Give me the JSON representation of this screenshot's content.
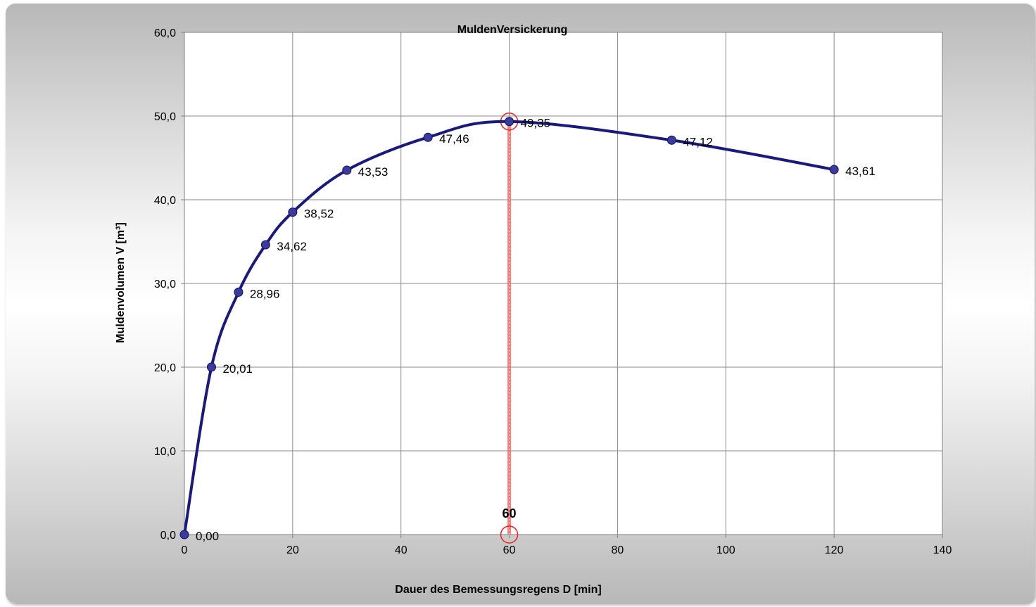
{
  "chart_data": {
    "type": "line",
    "title": "MuldenVersickerung",
    "xlabel": "Dauer des Bemessungsregens  D [min]",
    "ylabel": "Muldenvolumen V [m³]",
    "xlim": [
      0,
      140
    ],
    "ylim": [
      0,
      60
    ],
    "x_ticks": [
      "0",
      "20",
      "40",
      "60",
      "80",
      "100",
      "120",
      "140"
    ],
    "y_ticks": [
      "0,0",
      "10,0",
      "20,0",
      "30,0",
      "40,0",
      "50,0",
      "60,0"
    ],
    "grid": true,
    "series": [
      {
        "x": [
          0,
          5,
          10,
          15,
          20,
          30,
          45,
          60,
          90,
          120
        ],
        "y": [
          0.0,
          20.01,
          28.96,
          34.62,
          38.52,
          43.53,
          47.46,
          49.35,
          47.12,
          43.61
        ],
        "labels": [
          "0,00",
          "20,01",
          "28,96",
          "34,62",
          "38,52",
          "43,53",
          "47,46",
          "49,35",
          "47,12",
          "43,61"
        ],
        "color": "#1a1a7e",
        "marker_color": "#3a3aa0"
      }
    ],
    "annotation": {
      "x": 60,
      "y": 49.35,
      "label": "60",
      "line_color": "#ff6666",
      "circle_color": "#ee2222"
    }
  }
}
